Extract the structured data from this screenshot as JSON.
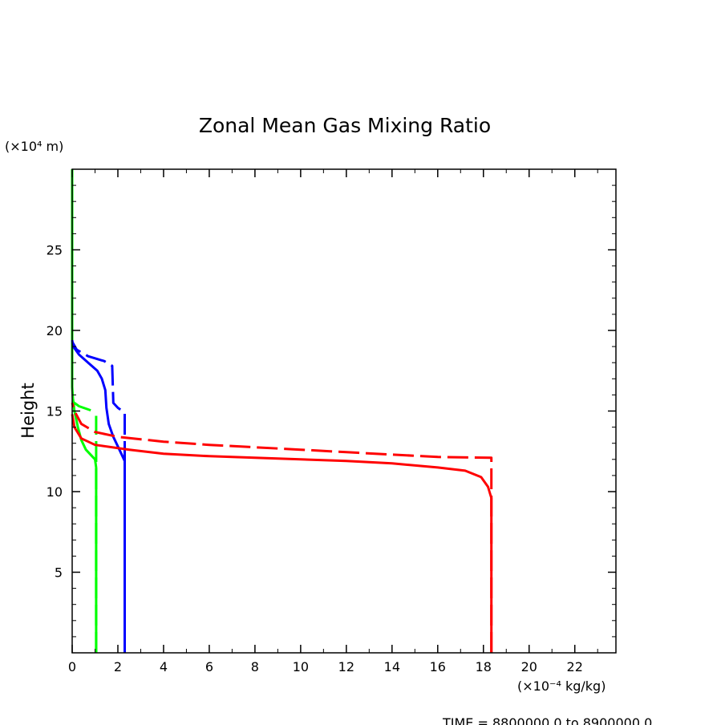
{
  "chart_data": {
    "type": "line",
    "title": "Zonal Mean Gas Mixing Ratio",
    "ylabel": "Height",
    "y_unit": "(×10⁴ m)",
    "x_unit": "(×10⁻⁴ kg/kg)",
    "footer": "TIME = 8800000.0 to 8900000.0",
    "xlim": [
      0,
      23.8
    ],
    "ylim": [
      0,
      30
    ],
    "x_ticks": [
      0,
      2,
      4,
      6,
      8,
      10,
      12,
      14,
      16,
      18,
      20,
      22
    ],
    "y_ticks": [
      5,
      10,
      15,
      20,
      25
    ],
    "colors": {
      "red": "#ff0000",
      "blue": "#0000ff",
      "green": "#00ff00"
    },
    "series": [
      {
        "color": "#00ff00",
        "style": "solid",
        "points": [
          [
            1.05,
            0.0
          ],
          [
            1.05,
            11.5
          ],
          [
            1.0,
            12.0
          ],
          [
            0.6,
            12.6
          ],
          [
            0.4,
            13.2
          ],
          [
            0.25,
            14.0
          ],
          [
            0.1,
            15.0
          ],
          [
            0.03,
            15.8
          ],
          [
            0.0,
            16.5
          ],
          [
            0.0,
            30.0
          ]
        ]
      },
      {
        "color": "#00ff00",
        "style": "dashed",
        "points": [
          [
            1.05,
            0.0
          ],
          [
            1.05,
            14.7
          ]
        ]
      },
      {
        "color": "#00ff00",
        "style": "dashed",
        "points": [
          [
            0.0,
            15.6
          ],
          [
            0.3,
            15.3
          ],
          [
            0.9,
            15.0
          ]
        ]
      },
      {
        "color": "#0000ff",
        "style": "solid",
        "points": [
          [
            2.3,
            0.0
          ],
          [
            2.3,
            11.9
          ],
          [
            2.0,
            12.8
          ],
          [
            1.8,
            13.4
          ],
          [
            1.6,
            14.2
          ],
          [
            1.5,
            15.2
          ],
          [
            1.45,
            16.3
          ],
          [
            1.3,
            17.0
          ],
          [
            1.1,
            17.5
          ],
          [
            0.7,
            18.0
          ],
          [
            0.3,
            18.5
          ],
          [
            0.05,
            19.0
          ],
          [
            0.0,
            19.4
          ]
        ]
      },
      {
        "color": "#0000ff",
        "style": "dashed",
        "points": [
          [
            2.3,
            0.0
          ],
          [
            2.3,
            14.9
          ],
          [
            2.0,
            15.2
          ],
          [
            1.8,
            15.5
          ],
          [
            1.75,
            17.8
          ],
          [
            1.4,
            18.1
          ],
          [
            0.7,
            18.4
          ],
          [
            0.2,
            18.8
          ],
          [
            0.0,
            19.3
          ]
        ]
      },
      {
        "color": "#ff0000",
        "style": "solid",
        "points": [
          [
            18.35,
            0.0
          ],
          [
            18.35,
            9.6
          ],
          [
            18.2,
            10.3
          ],
          [
            17.9,
            10.9
          ],
          [
            17.2,
            11.3
          ],
          [
            16.0,
            11.5
          ],
          [
            14.0,
            11.75
          ],
          [
            12.0,
            11.9
          ],
          [
            10.0,
            12.0
          ],
          [
            8.0,
            12.1
          ],
          [
            6.0,
            12.2
          ],
          [
            4.0,
            12.35
          ],
          [
            2.5,
            12.6
          ],
          [
            1.0,
            12.9
          ],
          [
            0.4,
            13.3
          ],
          [
            0.1,
            14.0
          ],
          [
            0.0,
            14.8
          ]
        ]
      },
      {
        "color": "#ff0000",
        "style": "dashed",
        "points": [
          [
            18.35,
            0.0
          ],
          [
            18.35,
            12.1
          ],
          [
            16.0,
            12.15
          ],
          [
            14.0,
            12.3
          ],
          [
            12.0,
            12.45
          ],
          [
            10.0,
            12.6
          ],
          [
            8.0,
            12.75
          ],
          [
            6.0,
            12.9
          ],
          [
            4.0,
            13.1
          ],
          [
            2.0,
            13.4
          ],
          [
            1.0,
            13.7
          ],
          [
            0.4,
            14.2
          ],
          [
            0.1,
            15.0
          ],
          [
            0.0,
            15.5
          ]
        ]
      }
    ]
  }
}
